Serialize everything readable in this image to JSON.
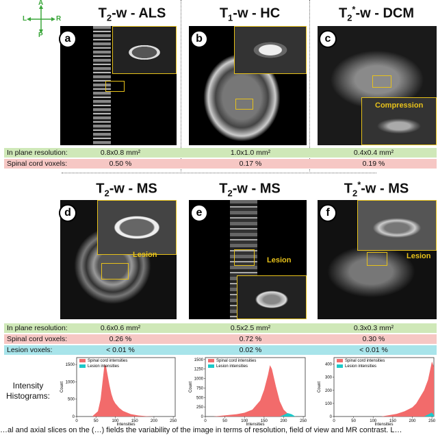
{
  "orientation": {
    "a": "A",
    "l": "L",
    "r": "R",
    "p": "P"
  },
  "top_titles": [
    {
      "prefix": "T",
      "sub": "2",
      "sup": "",
      "suffix": "-w - ALS"
    },
    {
      "prefix": "T",
      "sub": "1",
      "sup": "",
      "suffix": "-w - HC"
    },
    {
      "prefix": "T",
      "sub": "2",
      "sup": "*",
      "suffix": "-w - DCM"
    }
  ],
  "mid_titles": [
    {
      "prefix": "T",
      "sub": "2",
      "sup": "",
      "suffix": "-w - MS"
    },
    {
      "prefix": "T",
      "sub": "2",
      "sup": "",
      "suffix": "-w - MS"
    },
    {
      "prefix": "T",
      "sub": "2",
      "sup": "*",
      "suffix": "-w - MS"
    }
  ],
  "badges": [
    "a",
    "b",
    "c",
    "d",
    "e",
    "f"
  ],
  "annotations": {
    "compression": "Compression",
    "lesion": "Lesion"
  },
  "rows_top": {
    "resolution_label": "In plane resolution:",
    "resolution": [
      "0.8x0.8 mm²",
      "1.0x1.0 mm²",
      "0.4x0.4 mm²"
    ],
    "voxels_label": "Spinal cord voxels:",
    "voxels": [
      "0.50 %",
      "0.17 %",
      "0.19 %"
    ]
  },
  "rows_mid": {
    "resolution_label": "In plane resolution:",
    "resolution": [
      "0.6x0.6 mm²",
      "0.5x2.5 mm²",
      "0.3x0.3 mm²"
    ],
    "voxels_label": "Spinal cord voxels:",
    "voxels": [
      "0.26 %",
      "0.72 %",
      "0.30 %"
    ],
    "lesion_label": "Lesion voxels:",
    "lesion": [
      "< 0.01 %",
      "0.02 %",
      "< 0.01 %"
    ]
  },
  "histograms_label": "Intensity Histograms:",
  "colors": {
    "cord": "#f26b6b",
    "lesion": "#1cc9c9",
    "accent": "#e8c21a"
  },
  "chart_data": [
    {
      "type": "area",
      "x_ticks": [
        0,
        50,
        100,
        150,
        200,
        250
      ],
      "y_ticks": [
        0,
        500,
        1000,
        1500
      ],
      "ylim": [
        0,
        1700
      ],
      "xlim": [
        0,
        255
      ],
      "xlabel": "Intensities",
      "ylabel": "Count",
      "series": [
        {
          "name": "Spinal cord intensities",
          "x": [
            40,
            55,
            62,
            68,
            72,
            76,
            80,
            85,
            90,
            95,
            100,
            110,
            120,
            140,
            160,
            180,
            200
          ],
          "values": [
            0,
            150,
            500,
            1100,
            1500,
            1450,
            1200,
            900,
            650,
            480,
            380,
            250,
            160,
            70,
            30,
            10,
            0
          ]
        },
        {
          "name": "Lesion intensities",
          "x": [],
          "values": []
        }
      ]
    },
    {
      "type": "area",
      "x_ticks": [
        0,
        50,
        100,
        150,
        200,
        250
      ],
      "y_ticks": [
        0,
        250,
        500,
        750,
        1000,
        1250,
        1500
      ],
      "ylim": [
        0,
        1550
      ],
      "xlim": [
        0,
        255
      ],
      "xlabel": "Intensities",
      "ylabel": "Count",
      "series": [
        {
          "name": "Spinal cord intensities",
          "x": [
            20,
            40,
            60,
            80,
            100,
            120,
            140,
            150,
            160,
            165,
            170,
            180,
            190,
            200,
            210,
            220,
            230
          ],
          "values": [
            0,
            20,
            40,
            60,
            100,
            180,
            420,
            700,
            1100,
            1350,
            1250,
            800,
            400,
            180,
            80,
            30,
            0
          ]
        },
        {
          "name": "Lesion intensities",
          "x": [
            190,
            200,
            210,
            220,
            230
          ],
          "values": [
            0,
            40,
            90,
            60,
            0
          ]
        }
      ]
    },
    {
      "type": "area",
      "x_ticks": [
        0,
        50,
        100,
        150,
        200,
        250
      ],
      "y_ticks": [
        0,
        100,
        200,
        300,
        400
      ],
      "ylim": [
        0,
        450
      ],
      "xlim": [
        0,
        255
      ],
      "xlabel": "Intensities",
      "ylabel": "Count",
      "series": [
        {
          "name": "Spinal cord intensities",
          "x": [
            120,
            140,
            160,
            180,
            200,
            210,
            220,
            230,
            240,
            245,
            250,
            255
          ],
          "values": [
            0,
            10,
            20,
            40,
            70,
            100,
            150,
            200,
            280,
            350,
            420,
            380
          ]
        },
        {
          "name": "Lesion intensities",
          "x": [
            230,
            240,
            250,
            255
          ],
          "values": [
            0,
            15,
            30,
            10
          ]
        }
      ]
    }
  ],
  "caption": "…al and axial slices on the (…) fields the variability of the image in terms of resolution, field of view and MR contrast. L…"
}
